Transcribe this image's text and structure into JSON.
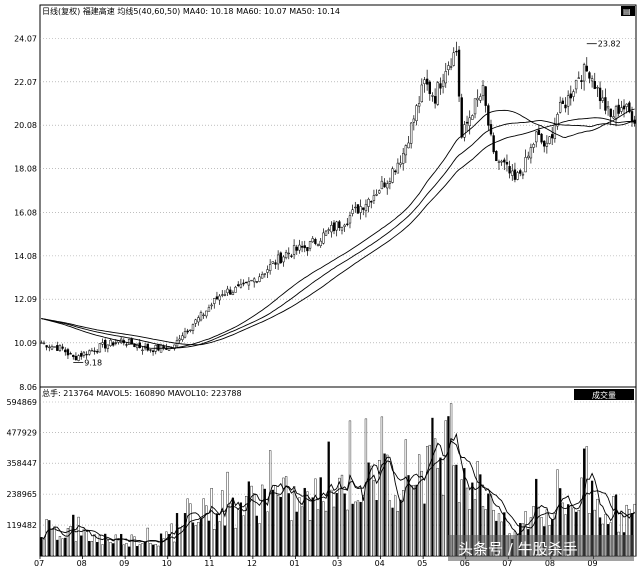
{
  "header": {
    "price_info": "日线(复权)  福建高速  均线5(40,60,50) MA40: 10.18 MA60: 10.07 MA50: 10.14",
    "volume_info": "总手: 213764 MAVOL5: 160890 MAVOL10: 223788",
    "volume_button": "成交量"
  },
  "watermark": "头条号 / 牛股杀手",
  "colors": {
    "background": "#ffffff",
    "candle_down": "#000000",
    "line": "#000000",
    "grid": "#999999",
    "button_bg": "#000000",
    "button_text": "#ffffff"
  },
  "chart_data": [
    {
      "type": "candlestick",
      "title": "日线(复权) 福建高速",
      "ylim": [
        8.06,
        25.0
      ],
      "y_ticks": [
        "24.07",
        "22.07",
        "20.08",
        "18.08",
        "16.08",
        "14.08",
        "12.09",
        "10.09",
        "8.06"
      ],
      "x_ticks": [
        "07",
        "08",
        "09",
        "10",
        "11",
        "12",
        "01",
        "03",
        "04",
        "05",
        "06",
        "07",
        "08",
        "09"
      ],
      "annotations": [
        {
          "label": "9.18",
          "x_index": 12,
          "value": 9.18
        },
        {
          "label": "23.82",
          "x_index": 205,
          "value": 23.82
        }
      ],
      "close_anchors": [
        [
          0,
          10.1
        ],
        [
          8,
          9.8
        ],
        [
          12,
          9.4
        ],
        [
          22,
          9.9
        ],
        [
          30,
          10.2
        ],
        [
          40,
          9.8
        ],
        [
          50,
          9.9
        ],
        [
          52,
          10.4
        ],
        [
          60,
          11.3
        ],
        [
          68,
          12.4
        ],
        [
          76,
          12.6
        ],
        [
          84,
          13.4
        ],
        [
          92,
          14.2
        ],
        [
          100,
          14.5
        ],
        [
          108,
          15.2
        ],
        [
          116,
          15.9
        ],
        [
          124,
          16.8
        ],
        [
          130,
          17.6
        ],
        [
          136,
          18.8
        ],
        [
          140,
          20.4
        ],
        [
          144,
          22.0
        ],
        [
          148,
          21.4
        ],
        [
          152,
          22.8
        ],
        [
          156,
          23.5
        ],
        [
          158,
          19.5
        ],
        [
          162,
          20.8
        ],
        [
          166,
          21.6
        ],
        [
          170,
          18.6
        ],
        [
          174,
          18.2
        ],
        [
          178,
          17.5
        ],
        [
          182,
          18.3
        ],
        [
          186,
          19.6
        ],
        [
          190,
          19.0
        ],
        [
          194,
          20.6
        ],
        [
          198,
          21.3
        ],
        [
          202,
          22.4
        ],
        [
          206,
          22.6
        ],
        [
          210,
          21.4
        ],
        [
          214,
          20.4
        ],
        [
          218,
          21.0
        ],
        [
          223,
          20.4
        ]
      ],
      "moving_averages": [
        "MA40: 10.18",
        "MA60: 10.07",
        "MA50: 10.14"
      ]
    },
    {
      "type": "bar",
      "title": "总手",
      "ylim": [
        0,
        594869
      ],
      "y_ticks": [
        "594869",
        "477929",
        "358447",
        "238965",
        "119482"
      ],
      "volume_anchors": [
        [
          0,
          115000
        ],
        [
          20,
          70000
        ],
        [
          40,
          60000
        ],
        [
          50,
          70000
        ],
        [
          56,
          200000
        ],
        [
          70,
          180000
        ],
        [
          84,
          230000
        ],
        [
          100,
          200000
        ],
        [
          116,
          290000
        ],
        [
          130,
          300000
        ],
        [
          142,
          340000
        ],
        [
          154,
          430000
        ],
        [
          162,
          280000
        ],
        [
          170,
          230000
        ],
        [
          176,
          60000
        ],
        [
          184,
          160000
        ],
        [
          196,
          190000
        ],
        [
          206,
          240000
        ],
        [
          214,
          170000
        ],
        [
          223,
          145000
        ]
      ],
      "series": [
        {
          "name": "MAVOL5",
          "value": 160890
        },
        {
          "name": "MAVOL10",
          "value": 223788
        }
      ]
    }
  ]
}
